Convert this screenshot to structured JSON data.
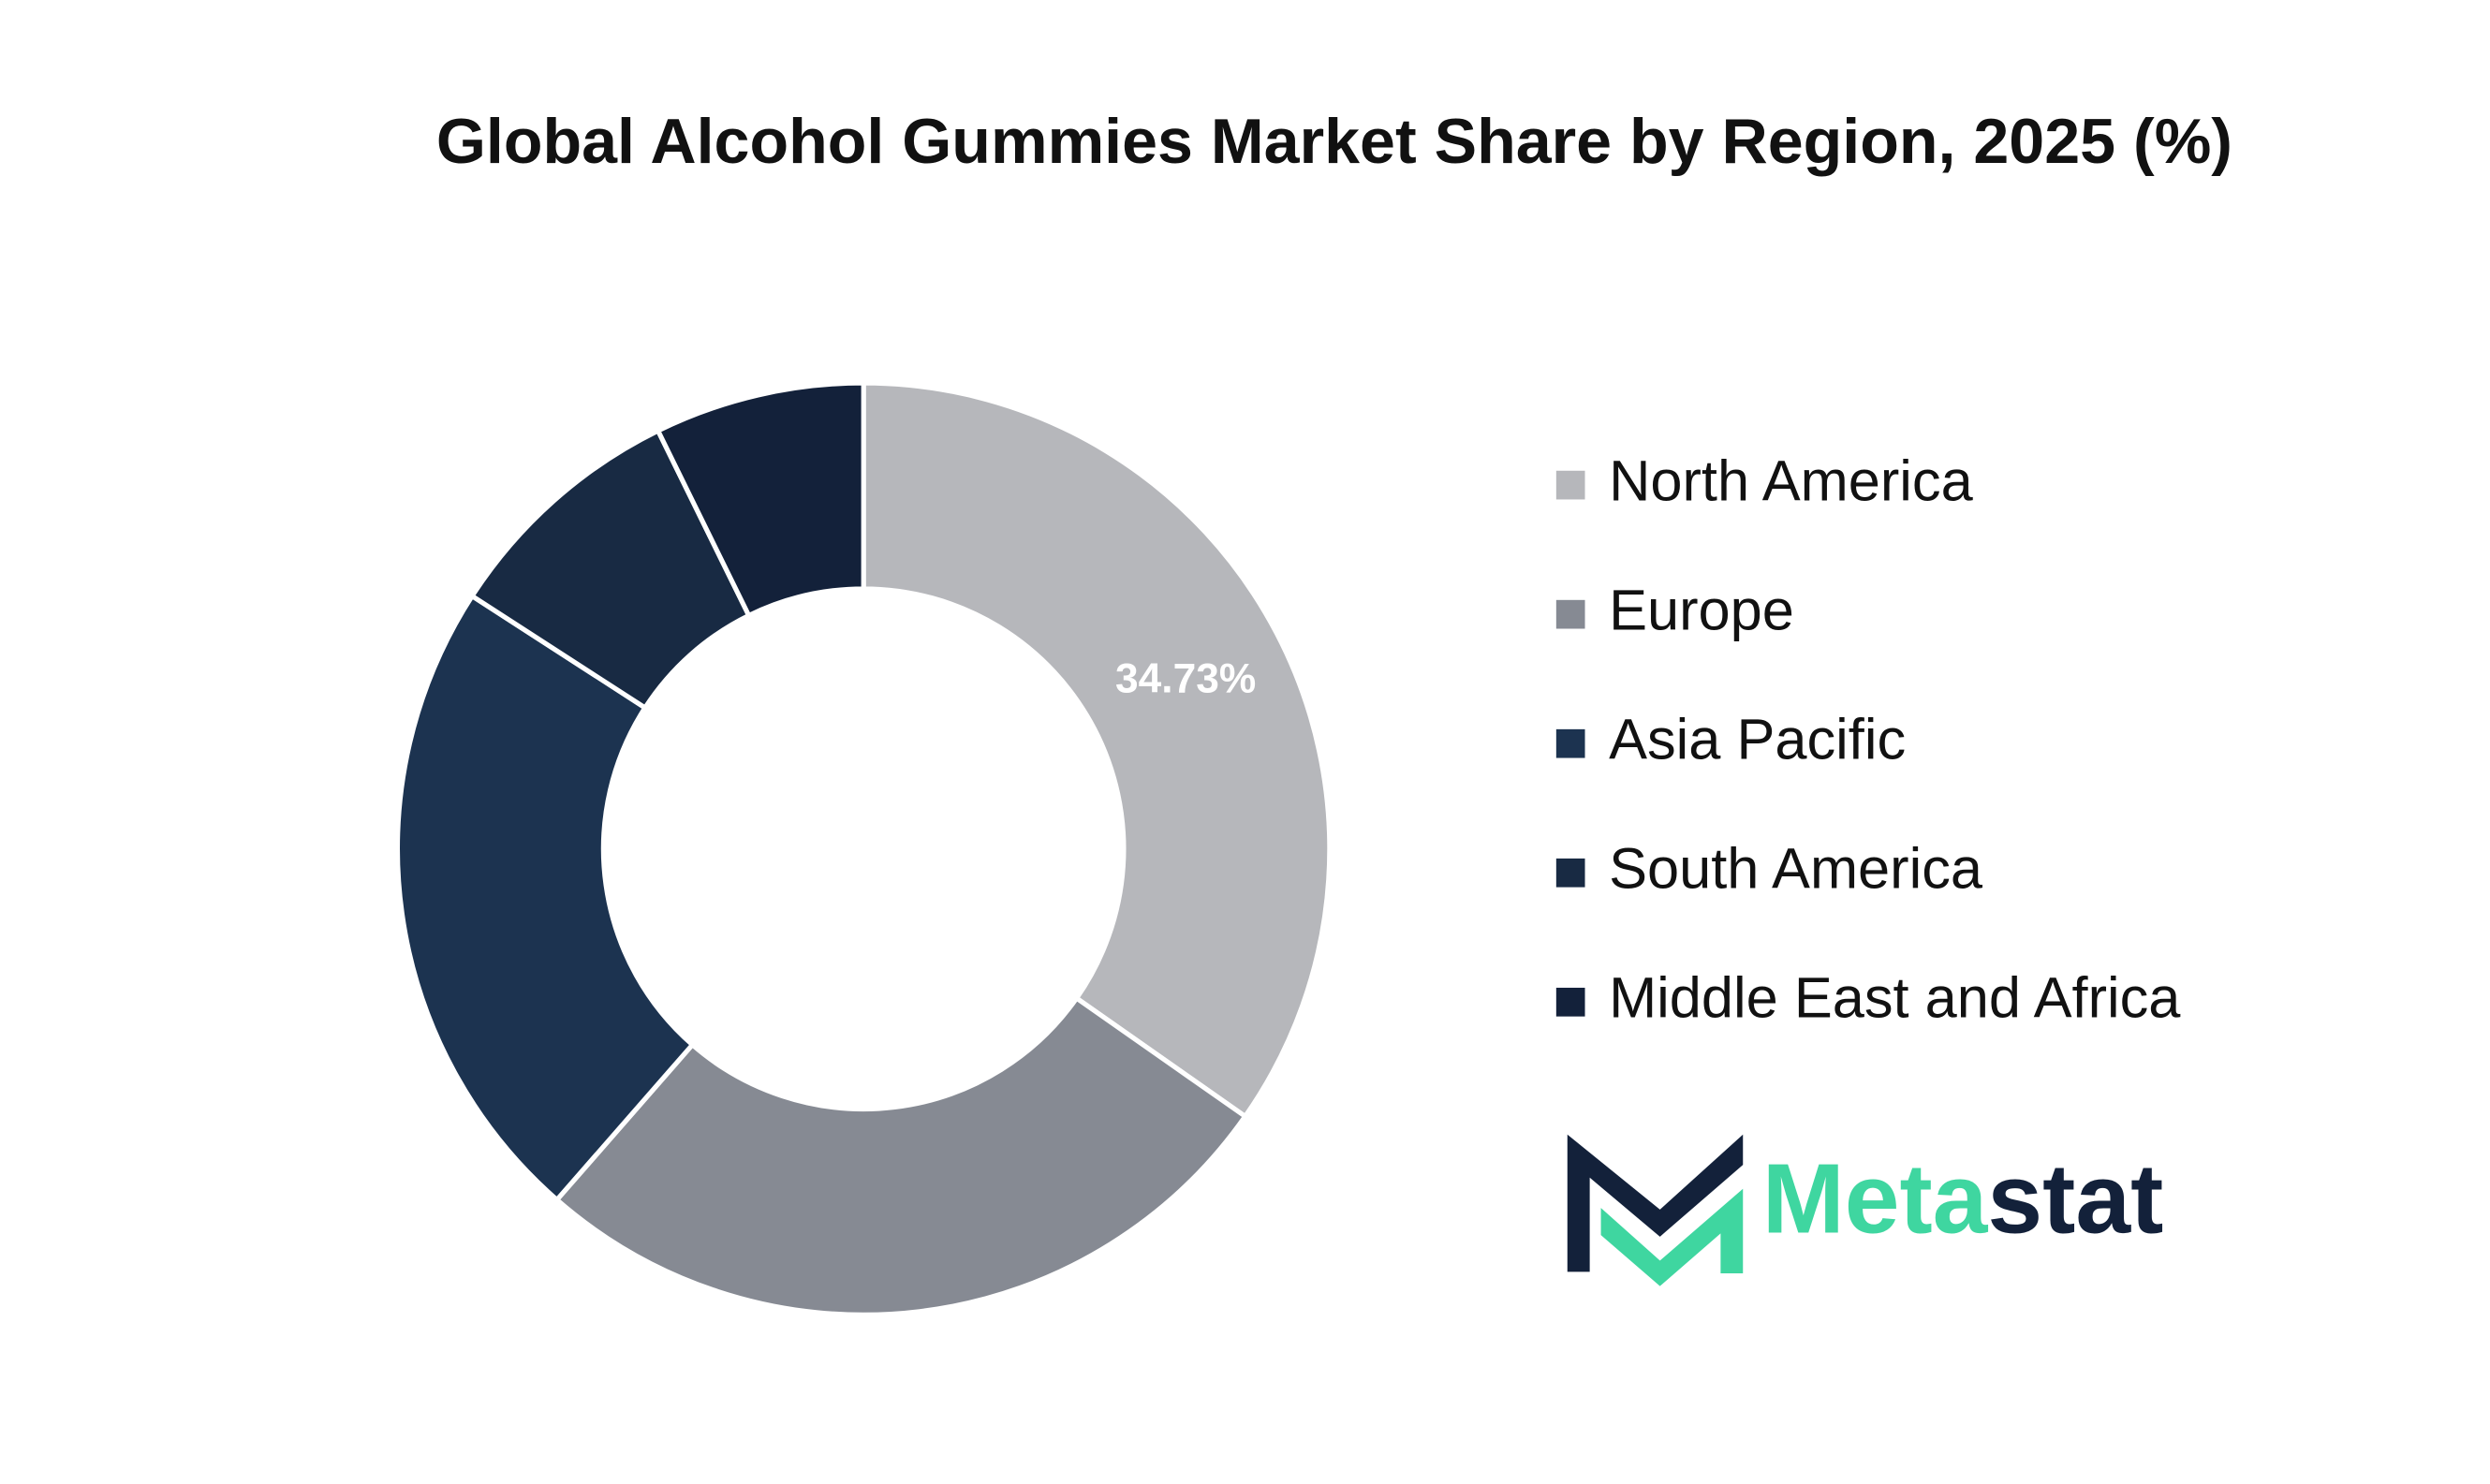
{
  "chart_data": {
    "type": "donut",
    "title": "Global Alcohol Gummies Market Share by Region, 2025 (%)",
    "categories": [
      "North America",
      "Europe",
      "Asia Pacific",
      "South America",
      "Middle East and Africa"
    ],
    "values": [
      34.73,
      26.7,
      22.7,
      8.6,
      7.27
    ],
    "value_labels": [
      "34.73%",
      null,
      null,
      null,
      null
    ],
    "colors": [
      "#b6b7bb",
      "#868a93",
      "#1c3350",
      "#182a43",
      "#13213a"
    ],
    "legend": "right"
  },
  "logo": [
    "Meta",
    "stat"
  ]
}
